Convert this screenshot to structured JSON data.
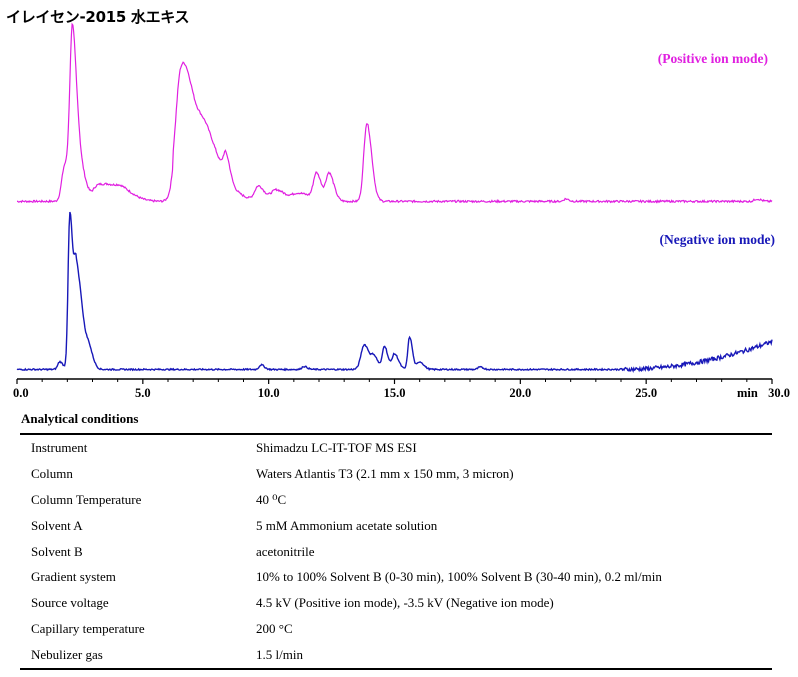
{
  "figure_title": "イレイセン-2015 水エキス",
  "colors": {
    "positive": "#e020e0",
    "negative": "#1818b8",
    "axis": "#000000"
  },
  "chart_data": {
    "type": "line",
    "xlabel": "min",
    "xlim": [
      0,
      30
    ],
    "x_ticks": [
      {
        "value": 0,
        "label": "0.0"
      },
      {
        "value": 5,
        "label": "5.0"
      },
      {
        "value": 10,
        "label": "10.0"
      },
      {
        "value": 15,
        "label": "15.0"
      },
      {
        "value": 20,
        "label": "20.0"
      },
      {
        "value": 25,
        "label": "25.0"
      },
      {
        "value": 30,
        "label": "30.0"
      }
    ],
    "series": [
      {
        "name": "(Positive ion mode)",
        "color": "#e020e0",
        "baseline": 1,
        "peaks": [
          [
            1.9,
            22,
            0.12
          ],
          [
            2.2,
            100,
            0.1
          ],
          [
            2.5,
            22,
            0.14
          ],
          [
            3.2,
            9,
            0.18
          ],
          [
            3.7,
            7,
            0.25
          ],
          [
            4.2,
            6,
            0.3
          ],
          [
            6.5,
            62,
            0.2
          ],
          [
            7.0,
            36,
            0.35
          ],
          [
            7.6,
            20,
            0.4
          ],
          [
            8.3,
            14,
            0.1
          ],
          [
            9.6,
            9,
            0.15
          ],
          [
            10.3,
            7,
            0.2
          ],
          [
            11.2,
            5,
            0.3
          ],
          [
            11.9,
            16,
            0.12
          ],
          [
            12.4,
            17,
            0.12
          ],
          [
            13.9,
            48,
            0.12
          ],
          [
            21.8,
            1.5,
            0.08
          ],
          [
            29.4,
            1.5,
            0.1
          ]
        ],
        "plateaus": [
          [
            6.2,
            9.8,
            7
          ]
        ]
      },
      {
        "name": "(Negative ion mode)",
        "color": "#1818b8",
        "baseline": 1,
        "peaks": [
          [
            1.7,
            5,
            0.08
          ],
          [
            2.1,
            100,
            0.07
          ],
          [
            2.35,
            62,
            0.09
          ],
          [
            2.6,
            26,
            0.12
          ],
          [
            2.9,
            8,
            0.1
          ],
          [
            9.7,
            3,
            0.08
          ],
          [
            11.4,
            2,
            0.08
          ],
          [
            13.8,
            16,
            0.13
          ],
          [
            14.2,
            7,
            0.1
          ],
          [
            14.6,
            15,
            0.08
          ],
          [
            15.0,
            10,
            0.1
          ],
          [
            15.6,
            21,
            0.07
          ],
          [
            16.0,
            5,
            0.1
          ],
          [
            18.4,
            1.5,
            0.08
          ]
        ],
        "rise": {
          "start": 24.0,
          "end": 30.0,
          "height": 18
        }
      }
    ]
  },
  "conditions": {
    "title": "Analytical conditions",
    "rows": [
      {
        "param": "Instrument",
        "value": "Shimadzu LC-IT-TOF MS ESI"
      },
      {
        "param": "Column",
        "value": "Waters Atlantis T3 (2.1 mm x 150 mm, 3 micron)"
      },
      {
        "param": "Column Temperature",
        "value": "40 ⁰C"
      },
      {
        "param": "Solvent A",
        "value": "5 mM Ammonium acetate solution"
      },
      {
        "param": "Solvent B",
        "value": "acetonitrile"
      },
      {
        "param": "Gradient system",
        "value": "10% to 100% Solvent B (0-30 min), 100% Solvent B (30-40 min), 0.2 ml/min"
      },
      {
        "param": "Source voltage",
        "value": "4.5 kV (Positive ion mode), -3.5 kV (Negative ion mode)"
      },
      {
        "param": "Capillary temperature",
        "value": "200 °C"
      },
      {
        "param": "Nebulizer gas",
        "value": "1.5 l/min"
      }
    ]
  }
}
